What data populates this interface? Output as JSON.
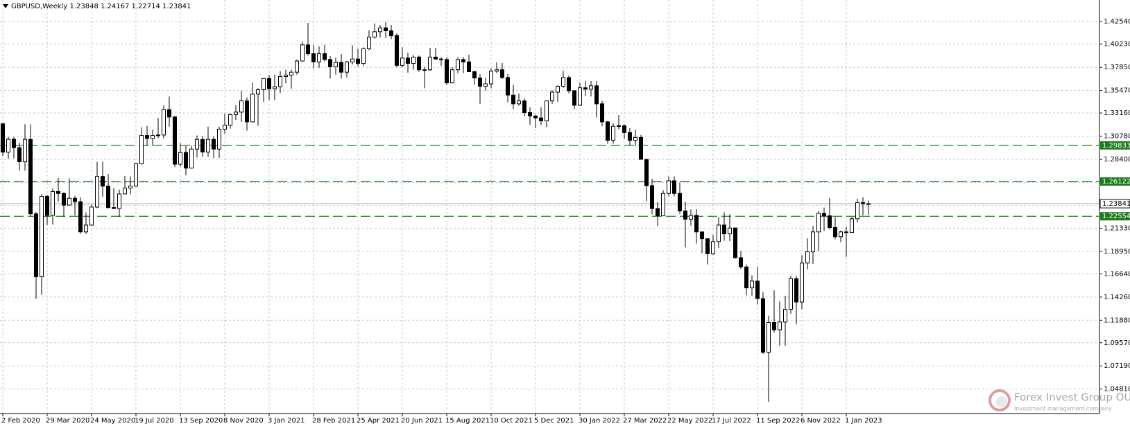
{
  "chart_data": {
    "type": "candlestick",
    "title": "GBPUSD,Weekly  1.23848 1.24167 1.22714 1.23841",
    "categories": [
      "2 Feb 2020",
      null,
      null,
      null,
      null,
      null,
      null,
      null,
      "29 Mar 2020",
      null,
      null,
      null,
      null,
      null,
      null,
      null,
      "24 May 2020",
      null,
      null,
      null,
      null,
      null,
      null,
      null,
      "19 Jul 2020",
      null,
      null,
      null,
      null,
      null,
      null,
      null,
      "13 Sep 2020",
      null,
      null,
      null,
      null,
      null,
      null,
      null,
      "8 Nov 2020",
      null,
      null,
      null,
      null,
      null,
      null,
      null,
      "3 Jan 2021",
      null,
      null,
      null,
      null,
      null,
      null,
      null,
      "28 Feb 2021",
      null,
      null,
      null,
      null,
      null,
      null,
      null,
      "25 Apr 2021",
      null,
      null,
      null,
      null,
      null,
      null,
      null,
      "20 Jun 2021",
      null,
      null,
      null,
      null,
      null,
      null,
      null,
      "15 Aug 2021",
      null,
      null,
      null,
      null,
      null,
      null,
      null,
      "10 Oct 2021",
      null,
      null,
      null,
      null,
      null,
      null,
      null,
      "5 Dec 2021",
      null,
      null,
      null,
      null,
      null,
      null,
      null,
      "30 Jan 2022",
      null,
      null,
      null,
      null,
      null,
      null,
      null,
      "27 Mar 2022",
      null,
      null,
      null,
      null,
      null,
      null,
      null,
      "22 May 2022",
      null,
      null,
      null,
      null,
      null,
      null,
      null,
      "17 Jul 2022",
      null,
      null,
      null,
      null,
      null,
      null,
      null,
      "11 Sep 2022",
      null,
      null,
      null,
      null,
      null,
      null,
      null,
      "6 Nov 2022",
      null,
      null,
      null,
      null,
      null,
      null,
      null,
      "1 Jan 2023",
      null,
      null,
      null,
      null
    ],
    "ohlc": [
      [
        1.3205,
        1.3215,
        1.287,
        1.2914
      ],
      [
        1.2914,
        1.307,
        1.2848,
        1.3046
      ],
      [
        1.3046,
        1.307,
        1.285,
        1.296
      ],
      [
        1.296,
        1.301,
        1.2725,
        1.2815
      ],
      [
        1.2815,
        1.32,
        1.2725,
        1.3045
      ],
      [
        1.3045,
        1.32,
        1.226,
        1.228
      ],
      [
        1.228,
        1.23,
        1.1409,
        1.1635
      ],
      [
        1.1635,
        1.2485,
        1.145,
        1.246
      ],
      [
        1.246,
        1.2475,
        1.2165,
        1.2265
      ],
      [
        1.2265,
        1.254,
        1.217,
        1.251
      ],
      [
        1.251,
        1.265,
        1.2405,
        1.249
      ],
      [
        1.249,
        1.25,
        1.225,
        1.237
      ],
      [
        1.237,
        1.2645,
        1.237,
        1.244
      ],
      [
        1.244,
        1.2465,
        1.2265,
        1.2405
      ],
      [
        1.2405,
        1.245,
        1.2075,
        1.2095
      ],
      [
        1.2095,
        1.2295,
        1.2075,
        1.2165
      ],
      [
        1.2165,
        1.2375,
        1.216,
        1.235
      ],
      [
        1.235,
        1.2815,
        1.234,
        1.2665
      ],
      [
        1.2665,
        1.2815,
        1.2455,
        1.2565
      ],
      [
        1.2565,
        1.269,
        1.2335,
        1.2345
      ],
      [
        1.2345,
        1.2545,
        1.233,
        1.2335
      ],
      [
        1.2335,
        1.253,
        1.225,
        1.2485
      ],
      [
        1.2485,
        1.267,
        1.2485,
        1.2545
      ],
      [
        1.2545,
        1.2665,
        1.248,
        1.2565
      ],
      [
        1.2565,
        1.28,
        1.256,
        1.2795
      ],
      [
        1.2795,
        1.317,
        1.2785,
        1.3085
      ],
      [
        1.3085,
        1.3185,
        1.298,
        1.3055
      ],
      [
        1.3055,
        1.3145,
        1.2985,
        1.3085
      ],
      [
        1.3085,
        1.3265,
        1.306,
        1.309
      ],
      [
        1.309,
        1.3395,
        1.3055,
        1.335
      ],
      [
        1.335,
        1.3485,
        1.3175,
        1.3275
      ],
      [
        1.3275,
        1.3285,
        1.276,
        1.279
      ],
      [
        1.279,
        1.3005,
        1.2765,
        1.291
      ],
      [
        1.291,
        1.2975,
        1.2675,
        1.275
      ],
      [
        1.275,
        1.298,
        1.2745,
        1.2945
      ],
      [
        1.2945,
        1.3085,
        1.286,
        1.3045
      ],
      [
        1.3045,
        1.308,
        1.2865,
        1.2915
      ],
      [
        1.2915,
        1.3175,
        1.2865,
        1.3045
      ],
      [
        1.3045,
        1.3075,
        1.2855,
        1.2945
      ],
      [
        1.2945,
        1.3175,
        1.2855,
        1.315
      ],
      [
        1.315,
        1.331,
        1.3105,
        1.319
      ],
      [
        1.319,
        1.331,
        1.3155,
        1.33
      ],
      [
        1.33,
        1.3395,
        1.3245,
        1.3325
      ],
      [
        1.3325,
        1.354,
        1.3225,
        1.344
      ],
      [
        1.344,
        1.3475,
        1.3135,
        1.3225
      ],
      [
        1.3225,
        1.3625,
        1.3225,
        1.351
      ],
      [
        1.351,
        1.357,
        1.3185,
        1.3555
      ],
      [
        1.3555,
        1.367,
        1.343,
        1.367
      ],
      [
        1.367,
        1.3705,
        1.345,
        1.3565
      ],
      [
        1.3565,
        1.371,
        1.345,
        1.3585
      ],
      [
        1.3585,
        1.3745,
        1.352,
        1.369
      ],
      [
        1.369,
        1.376,
        1.362,
        1.3705
      ],
      [
        1.3705,
        1.376,
        1.3565,
        1.3735
      ],
      [
        1.3735,
        1.3865,
        1.371,
        1.385
      ],
      [
        1.385,
        1.405,
        1.384,
        1.4015
      ],
      [
        1.4015,
        1.424,
        1.3905,
        1.3925
      ],
      [
        1.3925,
        1.4015,
        1.3775,
        1.384
      ],
      [
        1.384,
        1.4,
        1.378,
        1.3925
      ],
      [
        1.3925,
        1.4015,
        1.3845,
        1.3865
      ],
      [
        1.3865,
        1.39,
        1.367,
        1.379
      ],
      [
        1.379,
        1.3885,
        1.371,
        1.3835
      ],
      [
        1.3835,
        1.392,
        1.367,
        1.3735
      ],
      [
        1.3735,
        1.385,
        1.368,
        1.384
      ],
      [
        1.384,
        1.401,
        1.3815,
        1.387
      ],
      [
        1.387,
        1.3975,
        1.3795,
        1.3825
      ],
      [
        1.3825,
        1.399,
        1.38,
        1.3975
      ],
      [
        1.3975,
        1.4165,
        1.396,
        1.4095
      ],
      [
        1.4095,
        1.4235,
        1.408,
        1.415
      ],
      [
        1.415,
        1.422,
        1.409,
        1.419
      ],
      [
        1.419,
        1.425,
        1.4085,
        1.416
      ],
      [
        1.416,
        1.422,
        1.4075,
        1.411
      ],
      [
        1.411,
        1.4135,
        1.3785,
        1.3805
      ],
      [
        1.3805,
        1.399,
        1.3785,
        1.388
      ],
      [
        1.388,
        1.3935,
        1.373,
        1.3825
      ],
      [
        1.3825,
        1.391,
        1.376,
        1.389
      ],
      [
        1.389,
        1.3905,
        1.374,
        1.376
      ],
      [
        1.376,
        1.379,
        1.357,
        1.376
      ],
      [
        1.376,
        1.3985,
        1.375,
        1.389
      ],
      [
        1.389,
        1.3985,
        1.386,
        1.387
      ],
      [
        1.387,
        1.389,
        1.38,
        1.3865
      ],
      [
        1.3865,
        1.389,
        1.36,
        1.3625
      ],
      [
        1.3625,
        1.3785,
        1.362,
        1.376
      ],
      [
        1.376,
        1.389,
        1.3725,
        1.3865
      ],
      [
        1.3865,
        1.389,
        1.3725,
        1.384
      ],
      [
        1.384,
        1.3915,
        1.3735,
        1.374
      ],
      [
        1.374,
        1.375,
        1.3605,
        1.3675
      ],
      [
        1.3675,
        1.3715,
        1.341,
        1.359
      ],
      [
        1.359,
        1.3675,
        1.3545,
        1.3615
      ],
      [
        1.3615,
        1.3775,
        1.357,
        1.3745
      ],
      [
        1.3745,
        1.3835,
        1.3725,
        1.376
      ],
      [
        1.376,
        1.383,
        1.3665,
        1.368
      ],
      [
        1.368,
        1.3715,
        1.3425,
        1.35
      ],
      [
        1.35,
        1.3605,
        1.3355,
        1.341
      ],
      [
        1.341,
        1.3515,
        1.339,
        1.344
      ],
      [
        1.344,
        1.3465,
        1.328,
        1.332
      ],
      [
        1.332,
        1.3375,
        1.3195,
        1.3285
      ],
      [
        1.3285,
        1.33,
        1.316,
        1.3265
      ],
      [
        1.3265,
        1.3375,
        1.319,
        1.3235
      ],
      [
        1.3235,
        1.344,
        1.317,
        1.344
      ],
      [
        1.344,
        1.355,
        1.341,
        1.353
      ],
      [
        1.353,
        1.36,
        1.343,
        1.359
      ],
      [
        1.359,
        1.375,
        1.3575,
        1.368
      ],
      [
        1.368,
        1.37,
        1.352,
        1.3545
      ],
      [
        1.3545,
        1.3545,
        1.3355,
        1.3395
      ],
      [
        1.3395,
        1.363,
        1.339,
        1.3575
      ],
      [
        1.3575,
        1.3645,
        1.349,
        1.356
      ],
      [
        1.356,
        1.3645,
        1.3485,
        1.3595
      ],
      [
        1.3595,
        1.3645,
        1.327,
        1.341
      ],
      [
        1.341,
        1.344,
        1.318,
        1.3225
      ],
      [
        1.3225,
        1.3235,
        1.3,
        1.3035
      ],
      [
        1.3035,
        1.321,
        1.3,
        1.318
      ],
      [
        1.318,
        1.3295,
        1.315,
        1.3185
      ],
      [
        1.3185,
        1.32,
        1.305,
        1.3115
      ],
      [
        1.3115,
        1.316,
        1.2985,
        1.3035
      ],
      [
        1.3035,
        1.3145,
        1.2975,
        1.3065
      ],
      [
        1.3065,
        1.309,
        1.284,
        1.284
      ],
      [
        1.284,
        1.2845,
        1.241,
        1.257
      ],
      [
        1.257,
        1.264,
        1.2275,
        1.2335
      ],
      [
        1.2335,
        1.24,
        1.2155,
        1.226
      ],
      [
        1.226,
        1.2525,
        1.226,
        1.249
      ],
      [
        1.249,
        1.2665,
        1.246,
        1.262
      ],
      [
        1.262,
        1.2665,
        1.246,
        1.249
      ],
      [
        1.249,
        1.26,
        1.228,
        1.231
      ],
      [
        1.231,
        1.2405,
        1.1935,
        1.2225
      ],
      [
        1.2225,
        1.2325,
        1.216,
        1.2265
      ],
      [
        1.2265,
        1.233,
        1.1975,
        1.2095
      ],
      [
        1.2095,
        1.2095,
        1.1875,
        1.2025
      ],
      [
        1.2025,
        1.203,
        1.176,
        1.187
      ],
      [
        1.187,
        1.2065,
        1.186,
        1.1995
      ],
      [
        1.1995,
        1.2245,
        1.193,
        1.2165
      ],
      [
        1.2165,
        1.2295,
        1.2005,
        1.2075
      ],
      [
        1.2075,
        1.2275,
        1.2,
        1.2135
      ],
      [
        1.2135,
        1.214,
        1.182,
        1.183
      ],
      [
        1.183,
        1.19,
        1.1715,
        1.1735
      ],
      [
        1.1735,
        1.176,
        1.1445,
        1.152
      ],
      [
        1.152,
        1.165,
        1.144,
        1.159
      ],
      [
        1.159,
        1.1735,
        1.135,
        1.141
      ],
      [
        1.141,
        1.1475,
        1.084,
        1.086
      ],
      [
        1.086,
        1.1235,
        1.035,
        1.1165
      ],
      [
        1.1165,
        1.1495,
        1.106,
        1.109
      ],
      [
        1.109,
        1.138,
        1.0925,
        1.117
      ],
      [
        1.117,
        1.144,
        1.0925,
        1.13
      ],
      [
        1.13,
        1.1645,
        1.1255,
        1.1615
      ],
      [
        1.1615,
        1.1645,
        1.1145,
        1.1375
      ],
      [
        1.1375,
        1.1855,
        1.13,
        1.1775
      ],
      [
        1.1775,
        1.203,
        1.171,
        1.189
      ],
      [
        1.189,
        1.2155,
        1.1765,
        1.2095
      ],
      [
        1.2095,
        1.231,
        1.19,
        1.2285
      ],
      [
        1.2285,
        1.2345,
        1.2105,
        1.226
      ],
      [
        1.226,
        1.2445,
        1.212,
        1.214
      ],
      [
        1.214,
        1.2245,
        1.202,
        1.2045
      ],
      [
        1.2045,
        1.211,
        1.199,
        1.2095
      ],
      [
        1.2095,
        1.2145,
        1.184,
        1.209
      ],
      [
        1.209,
        1.2245,
        1.2085,
        1.223
      ],
      [
        1.223,
        1.2435,
        1.219,
        1.2395
      ],
      [
        1.2395,
        1.245,
        1.2265,
        1.2385
      ],
      [
        1.23848,
        1.24167,
        1.22714,
        1.23841
      ]
    ],
    "ylim": [
      1.023,
      1.4476
    ],
    "yticks": [
      {
        "value": 1.4254,
        "label": "1.42540"
      },
      {
        "value": 1.4023,
        "label": "1.40230"
      },
      {
        "value": 1.3785,
        "label": "1.37850"
      },
      {
        "value": 1.3547,
        "label": "1.35470"
      },
      {
        "value": 1.3316,
        "label": "1.33160"
      },
      {
        "value": 1.3078,
        "label": "1.30780"
      },
      {
        "value": 1.284,
        "label": "1.28400"
      },
      {
        "value": 1.2602,
        "label": "1.26020"
      },
      {
        "value": 1.2364,
        "label": "1.23640"
      },
      {
        "value": 1.2133,
        "label": "1.21330"
      },
      {
        "value": 1.1895,
        "label": "1.18950"
      },
      {
        "value": 1.1664,
        "label": "1.16640"
      },
      {
        "value": 1.1426,
        "label": "1.14260"
      },
      {
        "value": 1.1188,
        "label": "1.11880"
      },
      {
        "value": 1.0957,
        "label": "1.09570"
      },
      {
        "value": 1.0719,
        "label": "1.07190"
      },
      {
        "value": 1.0481,
        "label": "1.04810"
      }
    ],
    "grid": true,
    "up_color": "#ffffff",
    "down_color": "#000000",
    "level_color": "#1e7b1e",
    "levels": [
      1.29833,
      1.26122,
      1.22554
    ],
    "bid": 1.23841
  },
  "watermark": {
    "name": "Forex Invest Group OU",
    "tagline": "Investment management company"
  }
}
